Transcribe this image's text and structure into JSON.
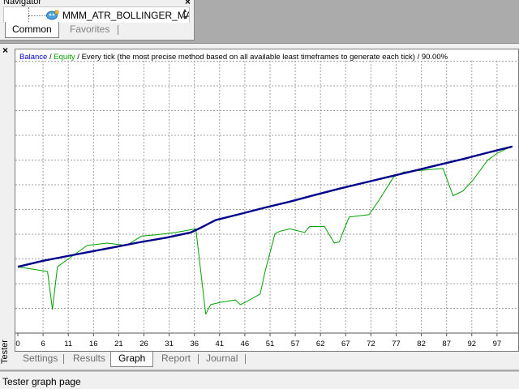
{
  "navigator": {
    "title": "Navigator",
    "close_glyph": "×",
    "expert_advisor": "MMM_ATR_BOLLINGER_MA",
    "tabs": [
      "Common",
      "Favorites"
    ],
    "active_tab": "Common"
  },
  "tester": {
    "side_label": "Tester",
    "close_glyph": "×",
    "tabs": [
      "Settings",
      "Results",
      "Graph",
      "Report",
      "Journal"
    ],
    "active_tab": "Graph"
  },
  "graph": {
    "legend": {
      "balance": "Balance",
      "sep1": " / ",
      "equity": "Equity",
      "rest": " / Every tick (the most precise method based on all available least timeframes to generate each tick) / 90.00%"
    }
  },
  "colors": {
    "balance": "#00008b",
    "equity": "#00a000",
    "grid": "#a0a0a0"
  },
  "status": {
    "text": "Tester graph page"
  },
  "chart_data": {
    "type": "line",
    "x_ticks": [
      "0",
      "6",
      "11",
      "16",
      "21",
      "26",
      "31",
      "36",
      "41",
      "46",
      "51",
      "57",
      "62",
      "67",
      "72",
      "77",
      "82",
      "87",
      "92",
      "97"
    ],
    "xlim": [
      0,
      100
    ],
    "grid": true,
    "legend_placement": "top-left",
    "series": [
      {
        "name": "Balance",
        "x": [
          0,
          5,
          10,
          15,
          20,
          25,
          30,
          35,
          37,
          40,
          45,
          50,
          55,
          60,
          65,
          70,
          75,
          80,
          85,
          90,
          95,
          100
        ],
        "values": [
          88,
          90.5,
          92.5,
          94.5,
          96.5,
          98.5,
          100.3,
          102.5,
          104.5,
          107.7,
          110.3,
          113,
          115.5,
          118.3,
          121,
          123.5,
          126,
          128.5,
          131,
          133.5,
          136.2,
          138.8
        ]
      },
      {
        "name": "Equity",
        "x": [
          0,
          3,
          6,
          7,
          8,
          10,
          14,
          18,
          22,
          25,
          28,
          32,
          36,
          37,
          38,
          39,
          41,
          44,
          45,
          46,
          49,
          50,
          52,
          53,
          55,
          58,
          59,
          62,
          64,
          65,
          66,
          67,
          71,
          73,
          76,
          78,
          83,
          86,
          88,
          90,
          92,
          95,
          97,
          100
        ],
        "values": [
          88,
          87,
          86,
          70,
          88,
          91,
          97,
          98,
          97,
          101,
          101.5,
          102.5,
          104,
          86,
          68,
          72,
          73,
          74,
          72,
          73,
          76.5,
          86,
          102,
          103,
          104,
          102.5,
          105,
          105,
          98,
          98.5,
          104,
          109,
          110,
          116,
          126,
          128,
          129,
          129.5,
          118,
          120,
          124.5,
          133,
          136,
          139
        ]
      }
    ]
  }
}
